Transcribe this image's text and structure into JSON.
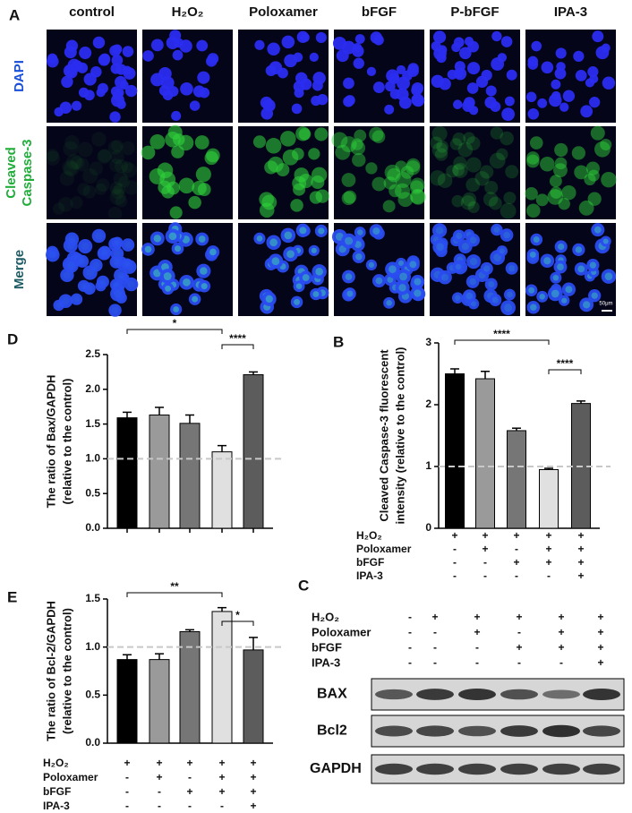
{
  "panel_a": {
    "label": "A",
    "columns": [
      "control",
      "H₂O₂",
      "Poloxamer",
      "bFGF",
      "P-bFGF",
      "IPA-3"
    ],
    "rows": [
      [
        "DAPI"
      ],
      [
        "Cleaved",
        "Caspase-3"
      ],
      [
        "Merge"
      ]
    ],
    "scale_bar": "50μm"
  },
  "chart_data": [
    {
      "type": "bar",
      "panel": "D",
      "ylabel": [
        "The ratio of Bax/GAPDH",
        "(relative to the control)"
      ],
      "ylim": [
        0,
        2.5
      ],
      "yticks": [
        {
          "value": 0,
          "label": "0.0"
        },
        0.5,
        {
          "value": 1,
          "label": "1.0"
        },
        1.5,
        {
          "value": 2,
          "label": "2.0"
        },
        2.5
      ],
      "values": [
        1.59,
        1.63,
        1.51,
        1.1,
        2.21
      ],
      "errors": [
        0.08,
        0.11,
        0.12,
        0.09,
        0.04
      ],
      "colors": [
        "#000000",
        "#9a9a9a",
        "#767676",
        "#e0e0e0",
        "#5c5c5c"
      ],
      "reference_line": 1,
      "significance": [
        {
          "from": 0,
          "to": 3,
          "label": "*"
        },
        {
          "from": 3,
          "to": 4,
          "label": "****"
        }
      ]
    },
    {
      "type": "bar",
      "panel": "B",
      "ylabel": [
        "Cleaved Caspase-3 fluorescent",
        "intensity (relative to the control)"
      ],
      "ylim": [
        0,
        3
      ],
      "yticks": [
        0,
        1,
        2,
        3
      ],
      "values": [
        2.5,
        2.42,
        1.58,
        0.95,
        2.02
      ],
      "errors": [
        0.08,
        0.12,
        0.04,
        0.02,
        0.04
      ],
      "colors": [
        "#000000",
        "#9a9a9a",
        "#767676",
        "#e0e0e0",
        "#5c5c5c"
      ],
      "reference_line": 1,
      "significance": [
        {
          "from": 0,
          "to": 3,
          "label": "****"
        },
        {
          "from": 3,
          "to": 4,
          "label": "****"
        }
      ],
      "treatments": {
        "rows": [
          "H₂O₂",
          "Poloxamer",
          "bFGF",
          "IPA-3"
        ],
        "signs": [
          [
            "+",
            "+",
            "+",
            "+",
            "+"
          ],
          [
            "-",
            "+",
            "-",
            "+",
            "+"
          ],
          [
            "-",
            "-",
            "+",
            "+",
            "+"
          ],
          [
            "-",
            "-",
            "-",
            "-",
            "+"
          ]
        ]
      }
    },
    {
      "type": "bar",
      "panel": "E",
      "ylabel": [
        "The ratio of Bcl-2/GAPDH",
        "(relative to the control)"
      ],
      "ylim": [
        0,
        1.5
      ],
      "yticks": [
        {
          "value": 0,
          "label": "0.0"
        },
        0.5,
        {
          "value": 1,
          "label": "1.0"
        },
        1.5
      ],
      "values": [
        0.87,
        0.87,
        1.16,
        1.37,
        0.97
      ],
      "errors": [
        0.05,
        0.06,
        0.02,
        0.04,
        0.13
      ],
      "colors": [
        "#000000",
        "#9a9a9a",
        "#767676",
        "#e0e0e0",
        "#5c5c5c"
      ],
      "reference_line": 1,
      "significance": [
        {
          "from": 0,
          "to": 3,
          "label": "**"
        },
        {
          "from": 3,
          "to": 4,
          "label": "*"
        }
      ],
      "treatments": {
        "rows": [
          "H₂O₂",
          "Poloxamer",
          "bFGF",
          "IPA-3"
        ],
        "signs": [
          [
            "+",
            "+",
            "+",
            "+",
            "+"
          ],
          [
            "-",
            "+",
            "-",
            "+",
            "+"
          ],
          [
            "-",
            "-",
            "+",
            "+",
            "+"
          ],
          [
            "-",
            "-",
            "-",
            "-",
            "+"
          ]
        ]
      }
    }
  ],
  "panel_c": {
    "label": "C",
    "treatments": {
      "rows": [
        "H₂O₂",
        "Poloxamer",
        "bFGF",
        "IPA-3"
      ],
      "signs": [
        [
          "-",
          "+",
          "+",
          "+",
          "+",
          "+"
        ],
        [
          "-",
          "-",
          "+",
          "-",
          "+",
          "+"
        ],
        [
          "-",
          "-",
          "-",
          "+",
          "+",
          "+"
        ],
        [
          "-",
          "-",
          "-",
          "-",
          "-",
          "+"
        ]
      ]
    },
    "blots": [
      "BAX",
      "Bcl2",
      "GAPDH"
    ]
  }
}
